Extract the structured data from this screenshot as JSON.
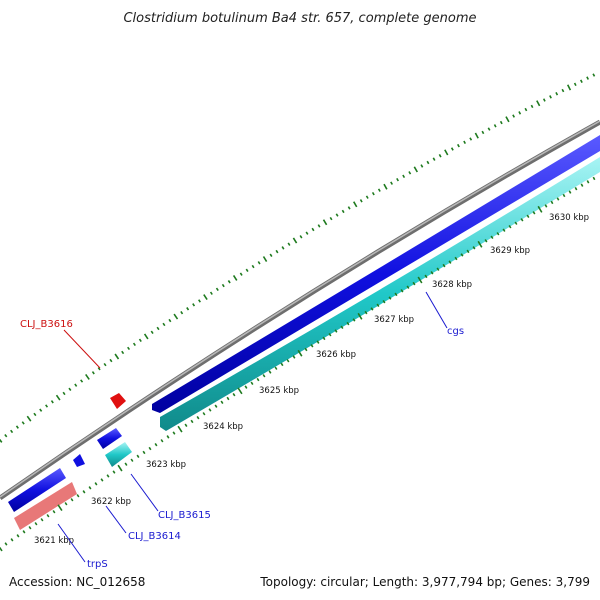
{
  "title": "Clostridium botulinum Ba4 str. 657, complete genome",
  "footer": {
    "accession": "Accession: NC_012658",
    "summary": "Topology: circular; Length: 3,977,794 bp; Genes: 3,799"
  },
  "colors": {
    "backbone": "#8a8a8a",
    "tick": "#1e7a1e",
    "gene_forward": "#1010e0",
    "gene_reverse": "#20c8c8",
    "gene_rna": "#e87878",
    "gene_highlight": "#e01010",
    "label_blue": "#1a1ad0",
    "label_red": "#cc1010"
  },
  "ticks": [
    {
      "label": "3621 kbp"
    },
    {
      "label": "3622 kbp"
    },
    {
      "label": "3623 kbp"
    },
    {
      "label": "3624 kbp"
    },
    {
      "label": "3625 kbp"
    },
    {
      "label": "3626 kbp"
    },
    {
      "label": "3627 kbp"
    },
    {
      "label": "3628 kbp"
    },
    {
      "label": "3629 kbp"
    },
    {
      "label": "3630 kbp"
    }
  ],
  "gene_labels": {
    "clj_b3616": "CLJ_B3616",
    "clj_b3615": "CLJ_B3615",
    "clj_b3614": "CLJ_B3614",
    "trps": "trpS",
    "cgs": "cgs"
  }
}
